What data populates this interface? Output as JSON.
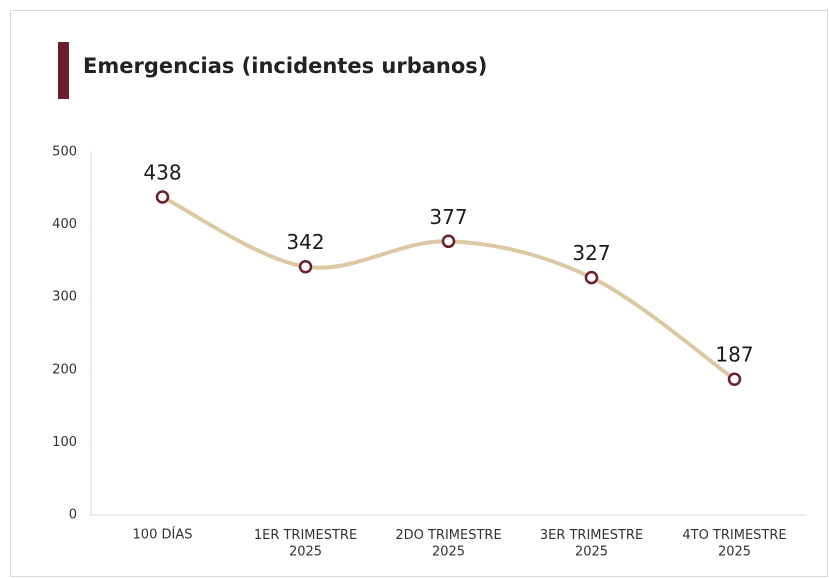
{
  "chart_data": {
    "type": "line",
    "title": "Emergencias (incidentes urbanos)",
    "categories": [
      "100 DÍAS",
      "1ER TRIMESTRE\n2025",
      "2DO TRIMESTRE\n2025",
      "3ER TRIMESTRE\n2025",
      "4TO TRIMESTRE\n2025"
    ],
    "values": [
      438,
      342,
      377,
      327,
      187
    ],
    "color": "#dcc9a3",
    "marker_color": "#6b1f2e",
    "accent_color": "#6b1f2e",
    "ylim": [
      0,
      500
    ],
    "yticks": [
      0,
      100,
      200,
      300,
      400,
      500
    ],
    "smooth": true
  }
}
